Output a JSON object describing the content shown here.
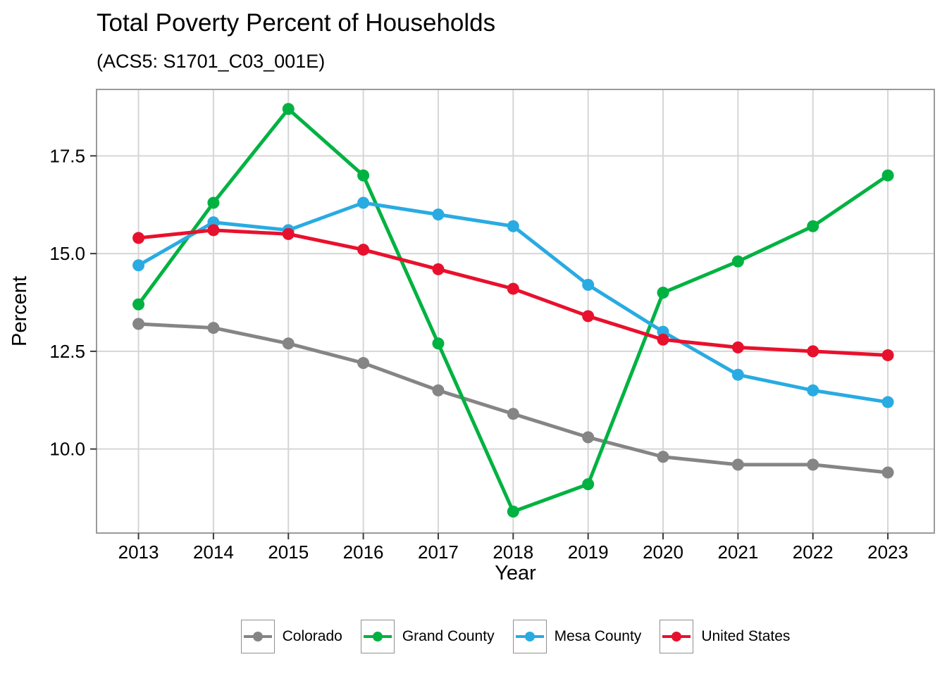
{
  "chart_data": {
    "type": "line",
    "title": "Total Poverty Percent of Households",
    "subtitle": "(ACS5: S1701_C03_001E)",
    "xlabel": "Year",
    "ylabel": "Percent",
    "x": [
      2013,
      2014,
      2015,
      2016,
      2017,
      2018,
      2019,
      2020,
      2021,
      2022,
      2023
    ],
    "x_tick_labels": [
      "2013",
      "2014",
      "2015",
      "2016",
      "2017",
      "2018",
      "2019",
      "2020",
      "2021",
      "2022",
      "2023"
    ],
    "y_ticks": [
      10.0,
      12.5,
      15.0,
      17.5
    ],
    "y_tick_labels": [
      "10.0",
      "12.5",
      "15.0",
      "17.5"
    ],
    "xlim": [
      2012.44,
      2023.62
    ],
    "ylim": [
      7.85,
      19.2
    ],
    "grid": "major",
    "legend_position": "bottom",
    "series": [
      {
        "name": "Colorado",
        "color": "#858585",
        "values": [
          13.2,
          13.1,
          12.7,
          12.2,
          11.5,
          10.9,
          10.3,
          9.8,
          9.6,
          9.6,
          9.4
        ]
      },
      {
        "name": "Grand County",
        "color": "#00B241",
        "values": [
          13.7,
          16.3,
          18.7,
          17.0,
          12.7,
          8.4,
          9.1,
          14.0,
          14.8,
          15.7,
          17.0
        ]
      },
      {
        "name": "Mesa County",
        "color": "#29ABE2",
        "values": [
          14.7,
          15.8,
          15.6,
          16.3,
          16.0,
          15.7,
          14.2,
          13.0,
          11.9,
          11.5,
          11.2
        ]
      },
      {
        "name": "United States",
        "color": "#E8112D",
        "values": [
          15.4,
          15.6,
          15.5,
          15.1,
          14.6,
          14.1,
          13.4,
          12.8,
          12.6,
          12.5,
          12.4
        ]
      }
    ],
    "style": {
      "gridline_color": "#D6D6D6",
      "panel_border_color": "#9A9A9A",
      "tick_color": "#3a3a3a",
      "text_color": "#000000"
    }
  }
}
